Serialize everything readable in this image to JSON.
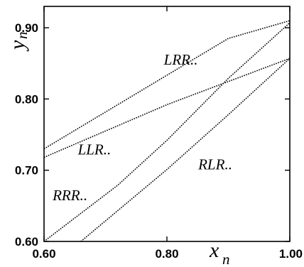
{
  "chart_data": {
    "type": "scatter",
    "xlabel": "x",
    "xlabel_sub": "n",
    "ylabel": "y",
    "ylabel_sub": "n",
    "xlim": [
      0.6,
      1.0
    ],
    "ylim": [
      0.6,
      0.93
    ],
    "grid": false,
    "legend": "none",
    "x_ticks": [
      {
        "value": 0.6,
        "label": "0.60"
      },
      {
        "value": 0.8,
        "label": "0.80"
      },
      {
        "value": 1.0,
        "label": "1.00"
      }
    ],
    "y_ticks": [
      {
        "value": 0.6,
        "label": "0.60"
      },
      {
        "value": 0.7,
        "label": "0.70"
      },
      {
        "value": 0.8,
        "label": "0.80"
      },
      {
        "value": 0.9,
        "label": "0.90"
      }
    ],
    "series": [
      {
        "x": [
          0.6,
          0.9,
          1.0
        ],
        "y": [
          0.73,
          0.885,
          0.91
        ]
      },
      {
        "x": [
          0.6,
          0.8,
          1.0
        ],
        "y": [
          0.718,
          0.792,
          0.857
        ]
      },
      {
        "x": [
          0.6,
          0.72,
          0.8,
          0.9,
          1.0
        ],
        "y": [
          0.6,
          0.679,
          0.742,
          0.829,
          0.907
        ]
      },
      {
        "x": [
          0.66,
          0.8,
          0.9,
          1.0
        ],
        "y": [
          0.6,
          0.701,
          0.778,
          0.857
        ]
      }
    ],
    "annotations": [
      {
        "text": "LRR..",
        "x": 0.795,
        "y": 0.848
      },
      {
        "text": "LLR..",
        "x": 0.655,
        "y": 0.722
      },
      {
        "text": "RRR..",
        "x": 0.614,
        "y": 0.658
      },
      {
        "text": "RLR..",
        "x": 0.851,
        "y": 0.701
      }
    ]
  }
}
